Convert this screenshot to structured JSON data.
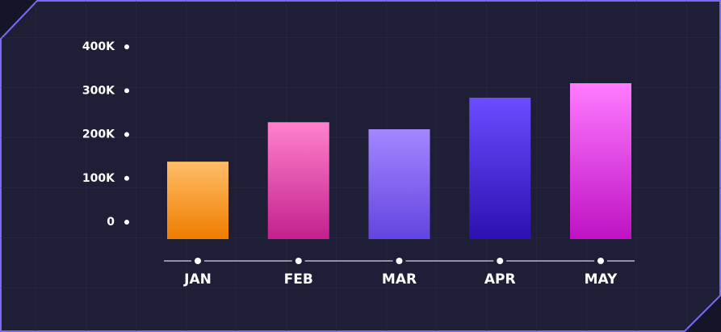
{
  "chart_data": {
    "type": "bar",
    "categories": [
      "JAN",
      "FEB",
      "MAR",
      "APR",
      "MAY"
    ],
    "values": [
      138000,
      228000,
      212000,
      284000,
      317000
    ],
    "colors": [
      [
        "#ffbd68",
        "#ef7d00"
      ],
      [
        "#ff82cc",
        "#c3208e"
      ],
      [
        "#a487ff",
        "#6344e0"
      ],
      [
        "#6c4cff",
        "#2e10b0"
      ],
      [
        "#ff7bff",
        "#bf12c4"
      ]
    ],
    "ylim": [
      0,
      400000
    ],
    "yticks": [
      0,
      {
        "value": 100000,
        "label": "100K"
      },
      {
        "value": 200000,
        "label": "200K"
      },
      {
        "value": 300000,
        "label": "300K"
      },
      {
        "value": 400000,
        "label": "400K"
      }
    ],
    "grid": true
  }
}
